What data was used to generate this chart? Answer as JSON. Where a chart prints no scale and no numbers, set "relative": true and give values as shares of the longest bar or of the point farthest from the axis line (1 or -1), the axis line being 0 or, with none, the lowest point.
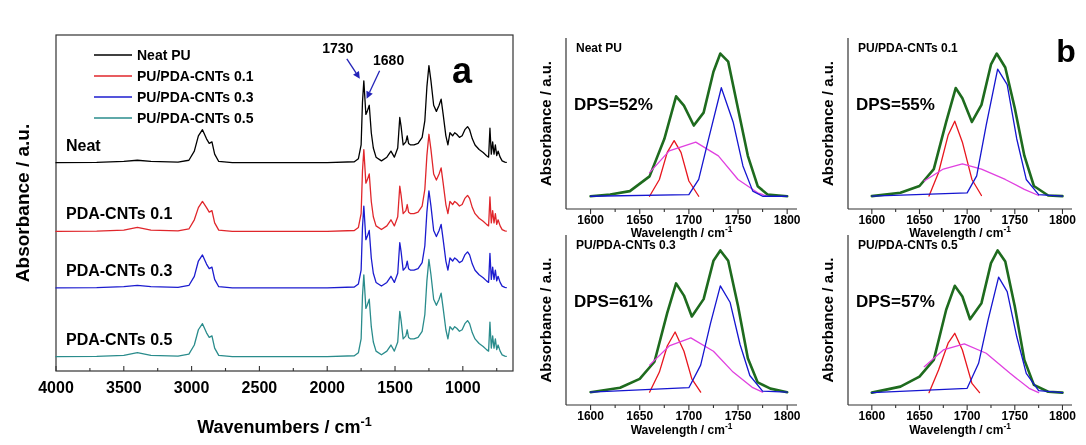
{
  "chart_data": [
    {
      "type": "line",
      "xlabel": "Wavenumbers / cm$^{-1}$",
      "ylabel": "Absorbance / a.u.",
      "relative": true,
      "legend": "top left",
      "xlim": [
        4000,
        630
      ],
      "xticks": [
        4000,
        {
          "value": 3750,
          "label": null
        },
        3500,
        {
          "value": 3250,
          "label": null
        },
        3000,
        {
          "value": 2750,
          "label": null
        },
        2500,
        {
          "value": 2250,
          "label": null
        },
        2000,
        {
          "value": 1750,
          "label": null
        },
        1500,
        {
          "value": 1250,
          "label": null
        },
        1000,
        {
          "value": 750,
          "label": null
        }
      ],
      "x": [
        4000,
        3700,
        3500,
        3400,
        3300,
        3100,
        3020,
        2980,
        2950,
        2920,
        2890,
        2870,
        2850,
        2830,
        2800,
        2700,
        2000,
        1800,
        1770,
        1750,
        1740,
        1730,
        1715,
        1705,
        1690,
        1675,
        1660,
        1640,
        1600,
        1560,
        1530,
        1505,
        1480,
        1465,
        1455,
        1440,
        1420,
        1410,
        1400,
        1385,
        1360,
        1330,
        1300,
        1280,
        1265,
        1250,
        1235,
        1215,
        1195,
        1175,
        1160,
        1145,
        1125,
        1110,
        1095,
        1075,
        1060,
        1045,
        1025,
        1005,
        985,
        965,
        950,
        930,
        910,
        880,
        850,
        825,
        810,
        800,
        790,
        780,
        770,
        760,
        750,
        740,
        725,
        710,
        690,
        680
      ],
      "series": [
        {
          "name": "Neat PU",
          "color": "#000000",
          "values": [
            0.682,
            0.683,
            0.686,
            0.69,
            0.686,
            0.684,
            0.69,
            0.72,
            0.77,
            0.79,
            0.76,
            0.745,
            0.75,
            0.71,
            0.686,
            0.682,
            0.682,
            0.685,
            0.695,
            0.74,
            0.88,
            0.95,
            0.84,
            0.85,
            0.87,
            0.78,
            0.73,
            0.7,
            0.688,
            0.7,
            0.72,
            0.7,
            0.73,
            0.83,
            0.8,
            0.74,
            0.75,
            0.77,
            0.745,
            0.74,
            0.74,
            0.745,
            0.765,
            0.82,
            0.93,
            1.0,
            0.95,
            0.87,
            0.85,
            0.87,
            0.89,
            0.84,
            0.77,
            0.74,
            0.78,
            0.77,
            0.78,
            0.775,
            0.765,
            0.77,
            0.79,
            0.8,
            0.79,
            0.76,
            0.74,
            0.725,
            0.715,
            0.705,
            0.7,
            0.795,
            0.71,
            0.75,
            0.71,
            0.74,
            0.705,
            0.72,
            0.7,
            0.688,
            0.684,
            0.683
          ]
        },
        {
          "name": "PU/PDA-CNTs 0.1",
          "color": "#e0262b",
          "values": [
            0.457,
            0.458,
            0.461,
            0.47,
            0.461,
            0.459,
            0.465,
            0.495,
            0.535,
            0.555,
            0.535,
            0.52,
            0.525,
            0.485,
            0.461,
            0.457,
            0.457,
            0.46,
            0.47,
            0.515,
            0.655,
            0.725,
            0.615,
            0.625,
            0.645,
            0.555,
            0.505,
            0.475,
            0.463,
            0.475,
            0.495,
            0.475,
            0.505,
            0.605,
            0.575,
            0.515,
            0.525,
            0.545,
            0.52,
            0.515,
            0.515,
            0.52,
            0.54,
            0.595,
            0.705,
            0.775,
            0.725,
            0.645,
            0.625,
            0.645,
            0.665,
            0.615,
            0.545,
            0.515,
            0.555,
            0.545,
            0.555,
            0.55,
            0.54,
            0.545,
            0.565,
            0.575,
            0.565,
            0.535,
            0.515,
            0.5,
            0.49,
            0.48,
            0.475,
            0.57,
            0.485,
            0.525,
            0.485,
            0.515,
            0.48,
            0.495,
            0.475,
            0.463,
            0.459,
            0.458
          ]
        },
        {
          "name": "PU/PDA-CNTs 0.3",
          "color": "#1c1ccf",
          "values": [
            0.272,
            0.273,
            0.276,
            0.28,
            0.276,
            0.274,
            0.28,
            0.31,
            0.36,
            0.38,
            0.35,
            0.335,
            0.34,
            0.3,
            0.276,
            0.272,
            0.272,
            0.275,
            0.285,
            0.33,
            0.47,
            0.54,
            0.43,
            0.44,
            0.46,
            0.37,
            0.32,
            0.29,
            0.278,
            0.29,
            0.31,
            0.29,
            0.32,
            0.42,
            0.39,
            0.33,
            0.34,
            0.36,
            0.335,
            0.33,
            0.33,
            0.335,
            0.355,
            0.41,
            0.52,
            0.59,
            0.54,
            0.46,
            0.44,
            0.46,
            0.48,
            0.43,
            0.36,
            0.33,
            0.37,
            0.36,
            0.37,
            0.365,
            0.355,
            0.36,
            0.38,
            0.39,
            0.38,
            0.35,
            0.33,
            0.315,
            0.305,
            0.295,
            0.29,
            0.385,
            0.3,
            0.34,
            0.3,
            0.33,
            0.295,
            0.31,
            0.29,
            0.278,
            0.274,
            0.273
          ]
        },
        {
          "name": "PU/PDA-CNTs 0.5",
          "color": "#2a8c8c",
          "values": [
            0.047,
            0.048,
            0.051,
            0.06,
            0.051,
            0.049,
            0.055,
            0.085,
            0.135,
            0.155,
            0.125,
            0.11,
            0.115,
            0.075,
            0.051,
            0.047,
            0.047,
            0.05,
            0.06,
            0.105,
            0.245,
            0.315,
            0.205,
            0.215,
            0.235,
            0.145,
            0.095,
            0.065,
            0.053,
            0.065,
            0.085,
            0.065,
            0.095,
            0.195,
            0.165,
            0.105,
            0.115,
            0.135,
            0.11,
            0.105,
            0.105,
            0.11,
            0.13,
            0.185,
            0.295,
            0.365,
            0.315,
            0.235,
            0.215,
            0.235,
            0.255,
            0.205,
            0.135,
            0.105,
            0.145,
            0.135,
            0.145,
            0.14,
            0.13,
            0.135,
            0.155,
            0.165,
            0.155,
            0.125,
            0.105,
            0.09,
            0.08,
            0.07,
            0.065,
            0.16,
            0.075,
            0.115,
            0.075,
            0.105,
            0.07,
            0.085,
            0.065,
            0.053,
            0.049,
            0.048
          ]
        }
      ],
      "annotations": [
        "Neat",
        "PDA-CNTs 0.1",
        "PDA-CNTs 0.3",
        "PDA-CNTs 0.5",
        "a",
        {
          "text": "1730",
          "x": 1730,
          "y": 0.95
        },
        {
          "text": "1680",
          "x": 1680,
          "y": 0.885
        }
      ]
    },
    {
      "type": "line",
      "title": "Neat PU",
      "xlabel": "Wavelength / cm$^{-1}$",
      "ylabel": "Absorbance / a.u.",
      "relative": true,
      "xlim": [
        1575,
        1810
      ],
      "xticks": [
        1600,
        {
          "value": 1625,
          "label": null
        },
        1650,
        {
          "value": 1675,
          "label": null
        },
        1700,
        {
          "value": 1725,
          "label": null
        },
        1750,
        {
          "value": 1775,
          "label": null
        },
        1800
      ],
      "series": [
        {
          "color": "#1e6b1e",
          "x": [
            1600,
            1620,
            1640,
            1660,
            1675,
            1687,
            1695,
            1705,
            1715,
            1725,
            1732,
            1740,
            1750,
            1760,
            1770,
            1780,
            1800
          ],
          "values": [
            0.082,
            0.093,
            0.115,
            0.21,
            0.45,
            0.725,
            0.665,
            0.537,
            0.62,
            0.883,
            1.0,
            0.948,
            0.645,
            0.342,
            0.147,
            0.093,
            0.082
          ]
        },
        {
          "color": "#e8161e",
          "x": [
            1660,
            1670,
            1678,
            1685,
            1692,
            1700,
            1710
          ],
          "values": [
            0.082,
            0.19,
            0.364,
            0.44,
            0.364,
            0.18,
            0.082
          ]
        },
        {
          "color": "#e040e0",
          "x": [
            1660,
            1680,
            1707,
            1730,
            1750,
            1770,
            1780
          ],
          "values": [
            0.234,
            0.374,
            0.43,
            0.342,
            0.19,
            0.104,
            0.082
          ]
        },
        {
          "color": "#1515d0",
          "x": [
            1600,
            1700,
            1710,
            1720,
            1733,
            1745,
            1755,
            1765,
            1775,
            1800
          ],
          "values": [
            0.082,
            0.093,
            0.19,
            0.45,
            0.78,
            0.56,
            0.277,
            0.115,
            0.082,
            0.082
          ]
        }
      ],
      "annotations": [
        "DPS=52%"
      ]
    },
    {
      "type": "line",
      "title": "PU/PDA-CNTs 0.1",
      "xlabel": "Wavelength / cm$^{-1}$",
      "ylabel": "Absorbance / a.u.",
      "relative": true,
      "xlim": [
        1575,
        1810
      ],
      "xticks": [
        1600,
        {
          "value": 1625,
          "label": null
        },
        1650,
        {
          "value": 1675,
          "label": null
        },
        1700,
        {
          "value": 1725,
          "label": null
        },
        1750,
        {
          "value": 1775,
          "label": null
        },
        1800
      ],
      "series": [
        {
          "color": "#1e6b1e",
          "x": [
            1600,
            1630,
            1650,
            1665,
            1678,
            1688,
            1695,
            1705,
            1715,
            1725,
            1731,
            1740,
            1750,
            1760,
            1770,
            1785,
            1800
          ],
          "values": [
            0.083,
            0.104,
            0.148,
            0.257,
            0.56,
            0.778,
            0.713,
            0.56,
            0.67,
            0.93,
            1.0,
            0.91,
            0.648,
            0.343,
            0.148,
            0.087,
            0.083
          ]
        },
        {
          "color": "#e8161e",
          "x": [
            1660,
            1670,
            1680,
            1687,
            1695,
            1705,
            1715
          ],
          "values": [
            0.083,
            0.235,
            0.474,
            0.565,
            0.43,
            0.19,
            0.087
          ]
        },
        {
          "color": "#e040e0",
          "x": [
            1655,
            1675,
            1695,
            1715,
            1740,
            1760,
            1775
          ],
          "values": [
            0.18,
            0.257,
            0.29,
            0.257,
            0.19,
            0.126,
            0.087
          ]
        },
        {
          "color": "#1515d0",
          "x": [
            1600,
            1700,
            1710,
            1720,
            1732,
            1742,
            1752,
            1762,
            1775,
            1800
          ],
          "values": [
            0.083,
            0.104,
            0.213,
            0.54,
            0.9,
            0.8,
            0.452,
            0.19,
            0.093,
            0.083
          ]
        }
      ],
      "annotations": [
        "DPS=55%",
        "b"
      ]
    },
    {
      "type": "line",
      "title": "PU/PDA-CNTs 0.3",
      "xlabel": "Wavelength / cm$^{-1}$",
      "ylabel": "Absorbance / a.u.",
      "relative": true,
      "xlim": [
        1575,
        1810
      ],
      "xticks": [
        1600,
        {
          "value": 1625,
          "label": null
        },
        1650,
        {
          "value": 1675,
          "label": null
        },
        1700,
        {
          "value": 1725,
          "label": null
        },
        1750,
        {
          "value": 1775,
          "label": null
        },
        1800
      ],
      "series": [
        {
          "color": "#1e6b1e",
          "x": [
            1600,
            1630,
            1650,
            1665,
            1678,
            1687,
            1695,
            1703,
            1715,
            1725,
            1732,
            1740,
            1750,
            1760,
            1770,
            1783,
            1800
          ],
          "values": [
            0.083,
            0.112,
            0.169,
            0.28,
            0.596,
            0.787,
            0.708,
            0.573,
            0.685,
            0.933,
            1.0,
            0.933,
            0.64,
            0.303,
            0.146,
            0.106,
            0.083
          ]
        },
        {
          "color": "#e8161e",
          "x": [
            1660,
            1670,
            1678,
            1686,
            1695,
            1703,
            1712
          ],
          "values": [
            0.083,
            0.213,
            0.382,
            0.472,
            0.348,
            0.169,
            0.083
          ]
        },
        {
          "color": "#e040e0",
          "x": [
            1660,
            1680,
            1702,
            1725,
            1745,
            1765,
            1775
          ],
          "values": [
            0.258,
            0.382,
            0.434,
            0.348,
            0.213,
            0.112,
            0.083
          ]
        },
        {
          "color": "#1515d0",
          "x": [
            1600,
            1700,
            1712,
            1722,
            1732,
            1742,
            1752,
            1762,
            1775,
            1800
          ],
          "values": [
            0.083,
            0.112,
            0.258,
            0.528,
            0.771,
            0.663,
            0.393,
            0.191,
            0.09,
            0.083
          ]
        }
      ],
      "annotations": [
        "DPS=61%"
      ]
    },
    {
      "type": "line",
      "title": "PU/PDA-CNTs 0.5",
      "xlabel": "Wavelength / cm$^{-1}$",
      "ylabel": "Absorbance / a.u.",
      "relative": true,
      "xlim": [
        1575,
        1810
      ],
      "xticks": [
        1600,
        {
          "value": 1625,
          "label": null
        },
        1650,
        {
          "value": 1675,
          "label": null
        },
        1700,
        {
          "value": 1725,
          "label": null
        },
        1750,
        {
          "value": 1775,
          "label": null
        },
        1800
      ],
      "series": [
        {
          "color": "#1e6b1e",
          "x": [
            1600,
            1630,
            1650,
            1665,
            1678,
            1687,
            1695,
            1703,
            1715,
            1725,
            1732,
            1740,
            1750,
            1760,
            1770,
            1785,
            1800
          ],
          "values": [
            0.08,
            0.119,
            0.184,
            0.292,
            0.616,
            0.771,
            0.702,
            0.555,
            0.659,
            0.918,
            1.0,
            0.929,
            0.637,
            0.292,
            0.13,
            0.086,
            0.08
          ]
        },
        {
          "color": "#e8161e",
          "x": [
            1660,
            1670,
            1680,
            1687,
            1695,
            1705,
            1713
          ],
          "values": [
            0.08,
            0.227,
            0.4,
            0.464,
            0.356,
            0.14,
            0.08
          ]
        },
        {
          "color": "#e040e0",
          "x": [
            1655,
            1675,
            1697,
            1720,
            1745,
            1765,
            1775
          ],
          "values": [
            0.248,
            0.356,
            0.395,
            0.335,
            0.205,
            0.108,
            0.08
          ]
        },
        {
          "color": "#1515d0",
          "x": [
            1600,
            1700,
            1712,
            1722,
            1733,
            1742,
            1752,
            1762,
            1775,
            1800
          ],
          "values": [
            0.08,
            0.108,
            0.27,
            0.551,
            0.827,
            0.734,
            0.443,
            0.205,
            0.093,
            0.08
          ]
        }
      ],
      "annotations": [
        "DPS=57%"
      ]
    }
  ]
}
